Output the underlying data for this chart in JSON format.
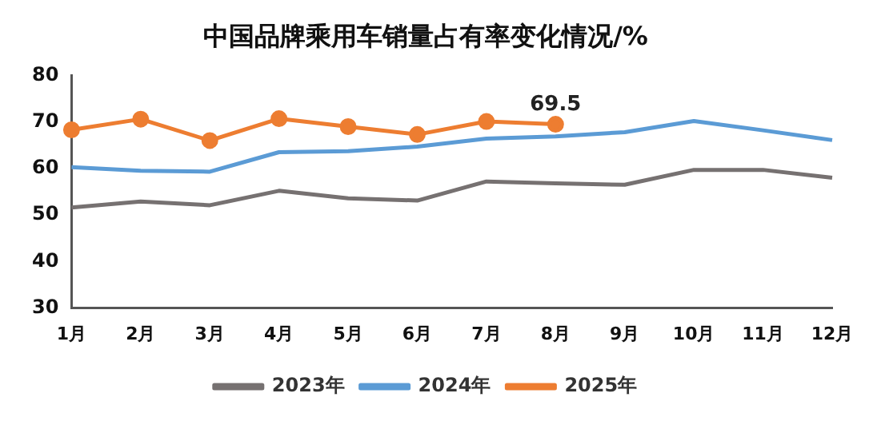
{
  "chart_data": {
    "type": "line",
    "title": "中国品牌乘用车销量占有率变化情况/%",
    "categories": [
      "1月",
      "2月",
      "3月",
      "4月",
      "5月",
      "6月",
      "7月",
      "8月",
      "9月",
      "10月",
      "11月",
      "12月"
    ],
    "series": [
      {
        "name": "2023年",
        "color": "#767171",
        "marker": "none",
        "values": [
          51.6,
          52.9,
          52.1,
          55.2,
          53.6,
          53.1,
          57.2,
          56.8,
          56.5,
          59.7,
          59.7,
          58.0
        ]
      },
      {
        "name": "2024年",
        "color": "#5b9bd5",
        "marker": "none",
        "values": [
          60.3,
          59.5,
          59.3,
          63.5,
          63.7,
          64.7,
          66.4,
          66.9,
          67.8,
          70.2,
          68.2,
          66.1
        ]
      },
      {
        "name": "2025年",
        "color": "#ed7d31",
        "marker": "circle",
        "values": [
          68.3,
          70.6,
          66.0,
          70.7,
          69.0,
          67.3,
          70.1,
          69.5,
          null,
          null,
          null,
          null
        ],
        "value_labels": [
          null,
          null,
          null,
          null,
          null,
          null,
          null,
          "69.5",
          null,
          null,
          null,
          null
        ]
      }
    ],
    "ylim": [
      30,
      80
    ],
    "yticks": [
      30,
      40,
      50,
      60,
      70,
      80
    ],
    "grid": false,
    "legend": "bottom"
  }
}
